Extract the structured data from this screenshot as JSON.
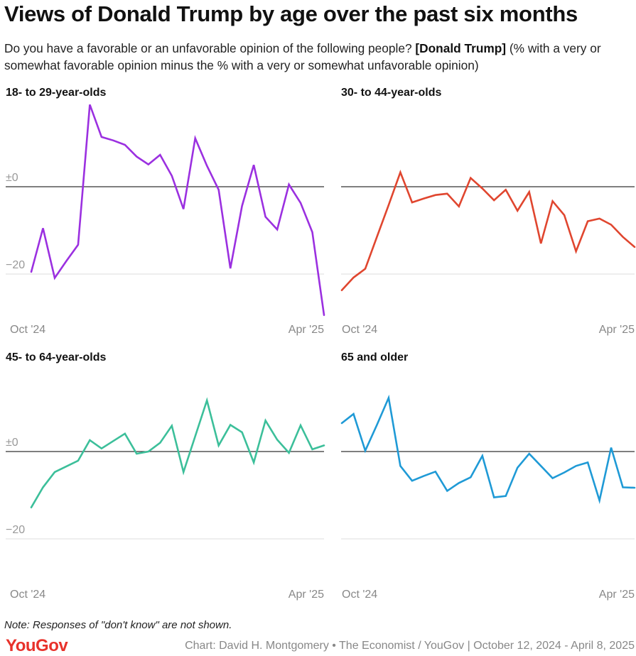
{
  "title": "Views of Donald Trump by age over the past six months",
  "subtitle": {
    "pre": "Do you have a favorable or an unfavorable opinion of the following people?",
    "bold": "[Donald Trump]",
    "post": "(% with a very or somewhat favorable opinion minus the % with a very or somewhat unfavorable opinion)"
  },
  "chart_data": [
    {
      "type": "line",
      "title": "18- to 29-year-olds",
      "color": "#9b30e0",
      "x_ticks": [
        "Oct '24",
        "Apr '25"
      ],
      "y_ticks": [
        "±0",
        "−20"
      ],
      "y_tick_values": [
        0,
        -20
      ],
      "ylim": [
        -31,
        20
      ],
      "values": [
        -19.5,
        -9.5,
        -20.9,
        -17,
        -13.3,
        18.8,
        11.4,
        10.6,
        9.6,
        6.9,
        5.1,
        7.3,
        2.5,
        -5.1,
        11.1,
        4.8,
        -0.7,
        -18.7,
        -4.4,
        5.0,
        -6.9,
        -9.8,
        0.5,
        -3.7,
        -10.4,
        -29.4
      ]
    },
    {
      "type": "line",
      "title": "30- to 44-year-olds",
      "color": "#e0462f",
      "x_ticks": [
        "Oct '24",
        "Apr '25"
      ],
      "y_tick_values": [
        0,
        -20
      ],
      "ylim": [
        -31,
        20
      ],
      "values": [
        -23.7,
        -20.8,
        -18.8,
        -11.5,
        -4.2,
        3.3,
        -3.6,
        -2.7,
        -1.9,
        -1.6,
        -4.5,
        2.0,
        -0.4,
        -3.1,
        -0.7,
        -5.5,
        -1.2,
        -13.0,
        -3.3,
        -6.5,
        -14.8,
        -7.9,
        -7.3,
        -8.7,
        -11.5,
        -13.8
      ]
    },
    {
      "type": "line",
      "title": "45- to 64-year-olds",
      "color": "#3cbf9a",
      "x_ticks": [
        "Oct '24",
        "Apr '25"
      ],
      "y_ticks": [
        "±0",
        "−20"
      ],
      "y_tick_values": [
        0,
        -20
      ],
      "ylim": [
        -31,
        20
      ],
      "values": [
        -12.8,
        -8.2,
        -4.7,
        -3.4,
        -2.1,
        2.6,
        0.7,
        2.4,
        4.1,
        -0.5,
        0,
        2.0,
        5.9,
        -4.7,
        3.5,
        11.7,
        1.4,
        6.1,
        4.4,
        -2.5,
        7.1,
        2.7,
        -0.3,
        6.0,
        0.5,
        1.4
      ]
    },
    {
      "type": "line",
      "title": "65 and older",
      "color": "#1f9ad6",
      "x_ticks": [
        "Oct '24",
        "Apr '25"
      ],
      "y_tick_values": [
        0,
        -20
      ],
      "ylim": [
        -31,
        20
      ],
      "values": [
        6.5,
        8.6,
        0.2,
        6.1,
        12.3,
        -3.3,
        -6.7,
        -5.6,
        -4.6,
        -9.0,
        -7.2,
        -5.9,
        -1.0,
        -10.5,
        -10.2,
        -3.7,
        -0.5,
        -3.3,
        -6.1,
        -4.8,
        -3.3,
        -2.5,
        -11.2,
        0.9,
        -8.2,
        -8.3
      ]
    }
  ],
  "note": "Note: Responses of \"don't know\" are not shown.",
  "logo": "YouGov",
  "credit": "Chart: David H. Montgomery • The Economist / YouGov | October 12, 2024 - April 8, 2025"
}
